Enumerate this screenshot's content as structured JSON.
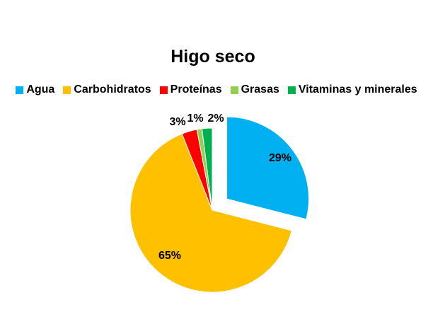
{
  "chart_data": {
    "type": "pie",
    "title": "Higo seco",
    "legend_position": "top",
    "categories": [
      "Agua",
      "Carbohidratos",
      "Proteínas",
      "Grasas",
      "Vitaminas y minerales"
    ],
    "values": [
      29,
      65,
      3,
      1,
      2
    ],
    "data_labels": [
      "29%",
      "65%",
      "3%",
      "1%",
      "2%"
    ],
    "colors": [
      "#00B0F0",
      "#FFC000",
      "#FF0000",
      "#92D050",
      "#00B050"
    ],
    "exploded_slice": "Agua"
  }
}
